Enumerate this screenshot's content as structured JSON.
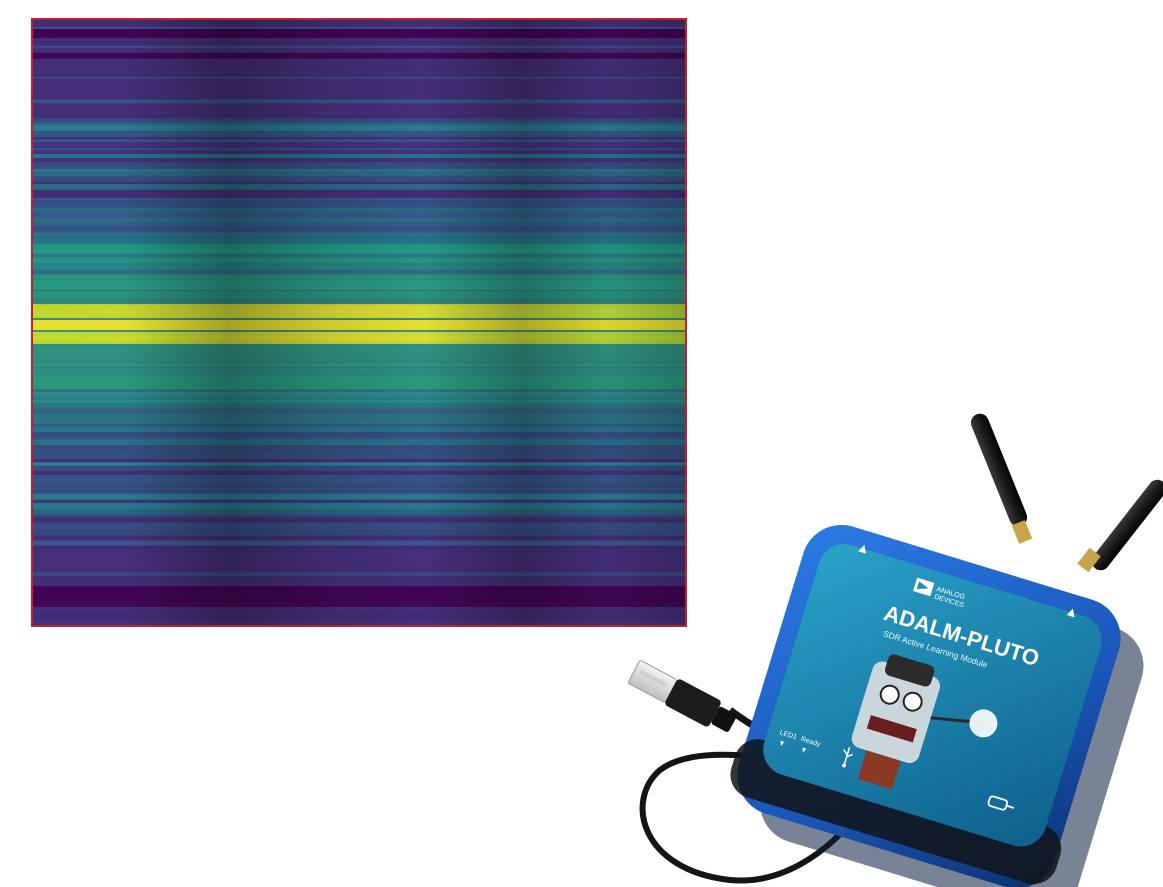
{
  "device": {
    "brand_line1": "ANALOG",
    "brand_line2": "DEVICES",
    "model": "ADALM-PLUTO",
    "subtitle": "SDR Active Learning Module",
    "led_label_1": "LED1",
    "led_label_2": "Ready",
    "icon_usb": "usb-icon",
    "icon_power": "power-plug-icon",
    "icon_tx": "tx-antenna-icon",
    "icon_rx": "rx-antenna-icon"
  },
  "colors": {
    "frame_border": "#c0202c",
    "viridis_low": "#440154",
    "viridis_mid": "#2a788e",
    "viridis_high": "#fde725",
    "device_body": "#1f5fbf",
    "device_panel": "#1b8fb5"
  }
}
